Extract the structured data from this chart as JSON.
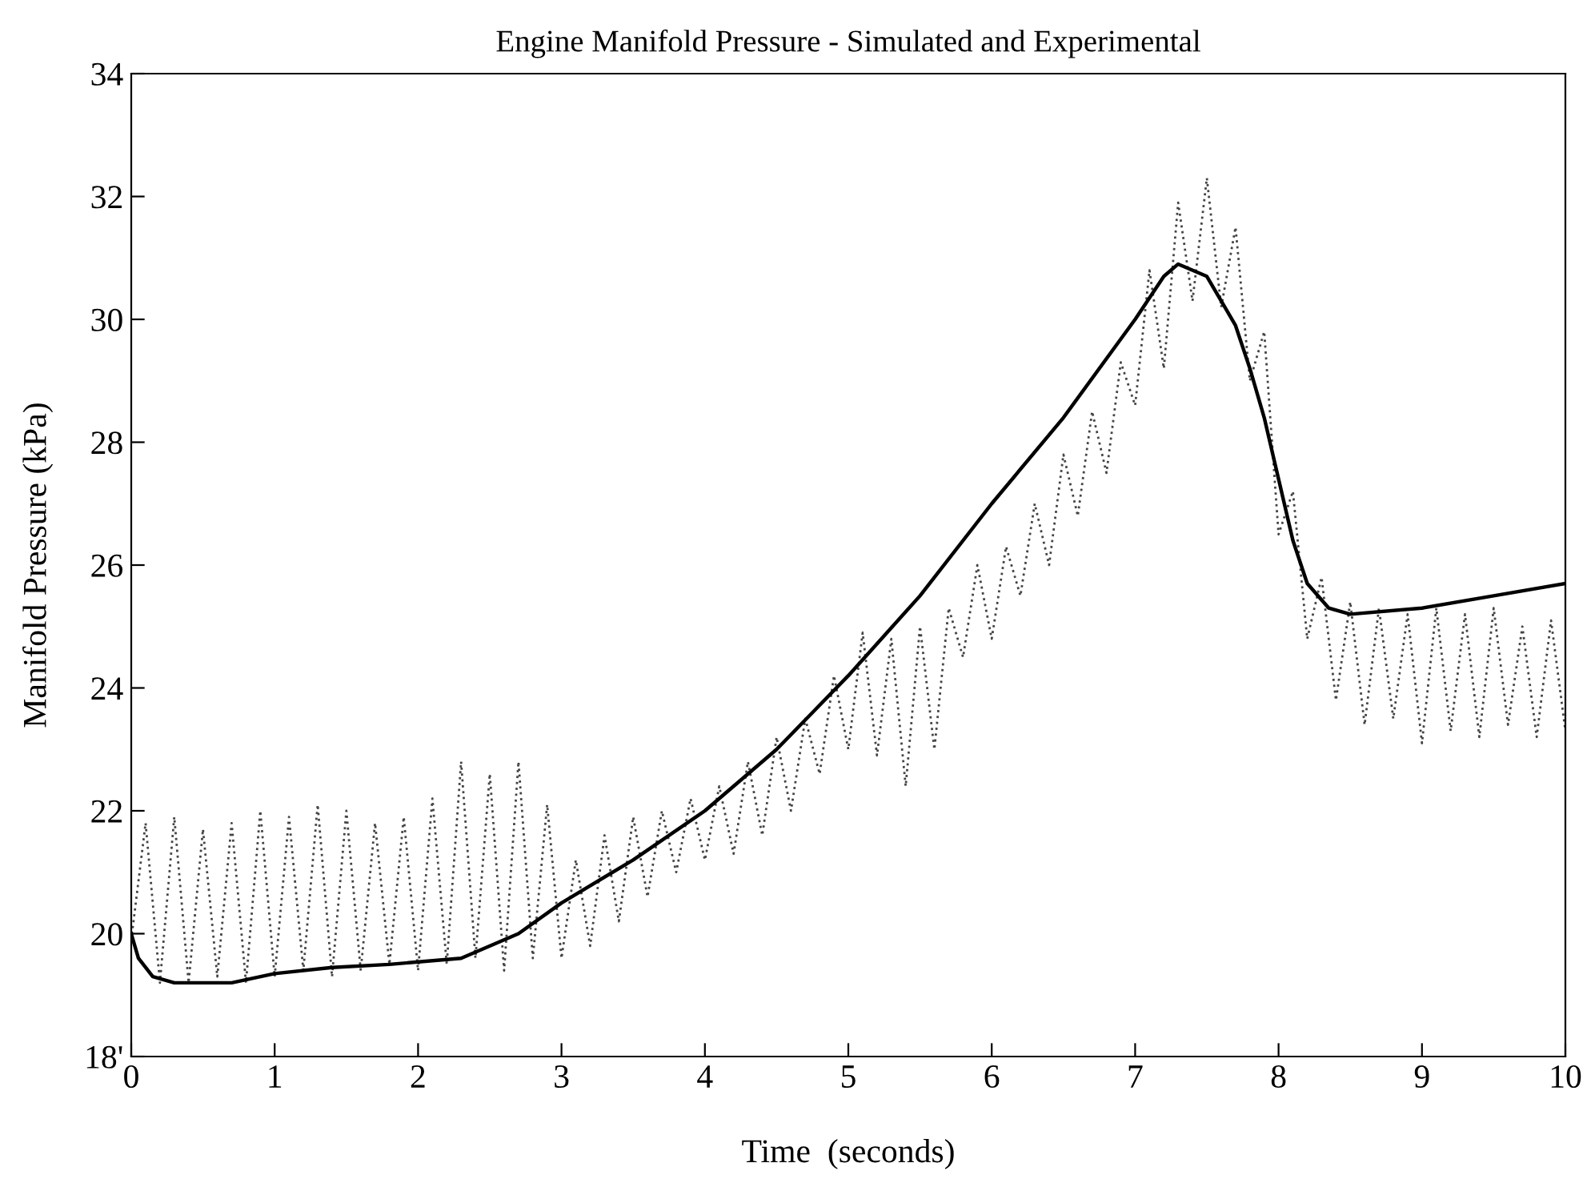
{
  "chart_data": {
    "type": "line",
    "title": "Engine Manifold Pressure - Simulated and Experimental",
    "xlabel": "Time  (seconds)",
    "ylabel": "Manifold Pressure (kPa)",
    "xlim": [
      0,
      10
    ],
    "ylim": [
      18,
      34
    ],
    "xticks": [
      0,
      1,
      2,
      3,
      4,
      5,
      6,
      7,
      8,
      9,
      10
    ],
    "yticks": [
      {
        "value": 18,
        "label": "18'"
      },
      20,
      22,
      24,
      26,
      28,
      30,
      32,
      34
    ],
    "grid": false,
    "legend": false,
    "marker": "none",
    "series": [
      {
        "color": "#444444",
        "line_style": "dotted",
        "x": [
          0,
          0.1,
          0.2,
          0.3,
          0.4,
          0.5,
          0.6,
          0.7,
          0.8,
          0.9,
          1.0,
          1.1,
          1.2,
          1.3,
          1.4,
          1.5,
          1.6,
          1.7,
          1.8,
          1.9,
          2.0,
          2.1,
          2.2,
          2.3,
          2.4,
          2.5,
          2.6,
          2.7,
          2.8,
          2.9,
          3.0,
          3.1,
          3.2,
          3.3,
          3.4,
          3.5,
          3.6,
          3.7,
          3.8,
          3.9,
          4.0,
          4.1,
          4.2,
          4.3,
          4.4,
          4.5,
          4.6,
          4.7,
          4.8,
          4.9,
          5.0,
          5.1,
          5.2,
          5.3,
          5.4,
          5.5,
          5.6,
          5.7,
          5.8,
          5.9,
          6.0,
          6.1,
          6.2,
          6.3,
          6.4,
          6.5,
          6.6,
          6.7,
          6.8,
          6.9,
          7.0,
          7.1,
          7.2,
          7.3,
          7.4,
          7.5,
          7.6,
          7.7,
          7.8,
          7.9,
          8.0,
          8.1,
          8.2,
          8.3,
          8.4,
          8.5,
          8.6,
          8.7,
          8.8,
          8.9,
          9.0,
          9.1,
          9.2,
          9.3,
          9.4,
          9.5,
          9.6,
          9.7,
          9.8,
          9.9,
          10.0
        ],
        "values": [
          19.9,
          21.8,
          19.2,
          21.9,
          19.2,
          21.7,
          19.3,
          21.8,
          19.2,
          22.0,
          19.3,
          21.9,
          19.4,
          22.1,
          19.3,
          22.0,
          19.4,
          21.8,
          19.5,
          21.9,
          19.4,
          22.2,
          19.5,
          22.8,
          19.6,
          22.6,
          19.4,
          22.8,
          19.6,
          22.1,
          19.6,
          21.2,
          19.8,
          21.6,
          20.2,
          21.9,
          20.6,
          22.0,
          21.0,
          22.2,
          21.2,
          22.4,
          21.3,
          22.8,
          21.6,
          23.2,
          22.0,
          23.5,
          22.6,
          24.2,
          23.0,
          24.9,
          22.9,
          24.8,
          22.4,
          25.0,
          23.0,
          25.3,
          24.5,
          26.0,
          24.8,
          26.3,
          25.5,
          27.0,
          26.0,
          27.8,
          26.8,
          28.5,
          27.5,
          29.3,
          28.6,
          30.8,
          29.2,
          31.9,
          30.3,
          32.3,
          30.2,
          31.5,
          29.0,
          29.8,
          26.5,
          27.2,
          24.8,
          25.8,
          23.8,
          25.4,
          23.4,
          25.3,
          23.5,
          25.2,
          23.1,
          25.3,
          23.3,
          25.2,
          23.2,
          25.3,
          23.4,
          25.0,
          23.2,
          25.1,
          23.3
        ]
      },
      {
        "color": "#000000",
        "line_style": "solid",
        "x": [
          0,
          0.05,
          0.15,
          0.3,
          0.7,
          1.0,
          1.4,
          1.8,
          2.3,
          2.7,
          3.0,
          3.5,
          4.0,
          4.5,
          5.0,
          5.5,
          6.0,
          6.5,
          7.0,
          7.2,
          7.3,
          7.5,
          7.7,
          7.8,
          7.9,
          8.0,
          8.1,
          8.2,
          8.35,
          8.5,
          9.0,
          9.5,
          10.0
        ],
        "values": [
          20.0,
          19.6,
          19.3,
          19.2,
          19.2,
          19.35,
          19.45,
          19.5,
          19.6,
          20.0,
          20.5,
          21.2,
          22.0,
          23.0,
          24.2,
          25.5,
          27.0,
          28.4,
          30.0,
          30.7,
          30.9,
          30.7,
          29.9,
          29.2,
          28.4,
          27.4,
          26.4,
          25.7,
          25.3,
          25.2,
          25.3,
          25.5,
          25.7
        ]
      }
    ]
  }
}
